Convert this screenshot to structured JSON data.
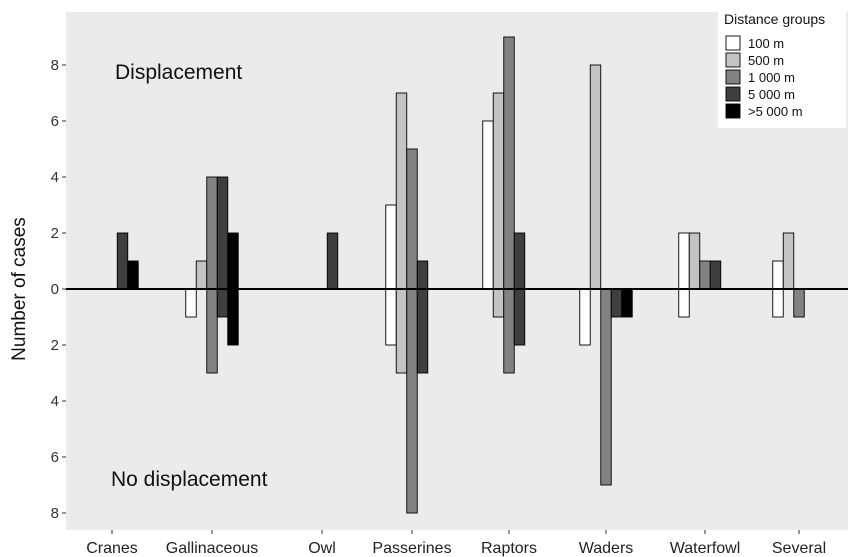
{
  "chart_data": {
    "type": "bar",
    "ylabel": "Number of cases",
    "yticks": [
      8,
      6,
      4,
      2,
      0,
      2,
      4,
      6,
      8
    ],
    "ylim": [
      -9,
      9
    ],
    "categories": [
      "Cranes",
      "Gallinaceous",
      "Owl",
      "Passerines",
      "Raptors",
      "Waders",
      "Waterfowl",
      "Several"
    ],
    "annotations": {
      "top": "Displacement",
      "bottom": "No displacement"
    },
    "legend": {
      "title": "Distance groups",
      "position": "top-right"
    },
    "series": [
      {
        "name": "100 m",
        "color": "#ffffff",
        "displacement": [
          0,
          0,
          0,
          3,
          6,
          0,
          2,
          1
        ],
        "no_displacement": [
          0,
          1,
          0,
          2,
          0,
          2,
          1,
          1
        ]
      },
      {
        "name": "500 m",
        "color": "#c3c3c3",
        "displacement": [
          0,
          1,
          0,
          7,
          7,
          8,
          2,
          2
        ],
        "no_displacement": [
          0,
          0,
          0,
          3,
          1,
          0,
          0,
          0
        ]
      },
      {
        "name": "1 000 m",
        "color": "#828282",
        "displacement": [
          0,
          4,
          0,
          5,
          9,
          0,
          1,
          0
        ],
        "no_displacement": [
          0,
          3,
          0,
          8,
          3,
          7,
          0,
          1
        ]
      },
      {
        "name": "5 000 m",
        "color": "#3f3f3f",
        "displacement": [
          2,
          4,
          2,
          1,
          2,
          0,
          1,
          0
        ],
        "no_displacement": [
          0,
          1,
          0,
          3,
          2,
          1,
          0,
          0
        ]
      },
      {
        "name": ">5 000 m",
        "color": "#000000",
        "displacement": [
          1,
          2,
          0,
          0,
          0,
          0,
          0,
          0
        ],
        "no_displacement": [
          0,
          2,
          0,
          0,
          0,
          1,
          0,
          0
        ]
      }
    ],
    "grid": false
  }
}
